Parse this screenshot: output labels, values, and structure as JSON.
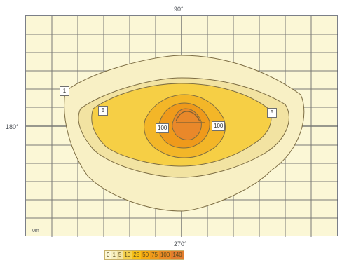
{
  "axes": {
    "top_label": "90°",
    "left_label": "180°",
    "bottom_label": "270°",
    "corner_note": "0m"
  },
  "contour_labels": [
    {
      "text": "1"
    },
    {
      "text": "5"
    },
    {
      "text": "5"
    },
    {
      "text": "100"
    },
    {
      "text": "100"
    }
  ],
  "legend": [
    {
      "label": "0",
      "color": "#fbf7d6"
    },
    {
      "label": "1",
      "color": "#f7f0bf"
    },
    {
      "label": "5",
      "color": "#f2e3a2"
    },
    {
      "label": "10",
      "color": "#f3d04d"
    },
    {
      "label": "25",
      "color": "#f6bf16"
    },
    {
      "label": "50",
      "color": "#f6aa12"
    },
    {
      "label": "75",
      "color": "#ef9a1b"
    },
    {
      "label": "100",
      "color": "#ea8a24"
    },
    {
      "label": "140",
      "color": "#e27d2e"
    }
  ],
  "colors": {
    "background": "#fbf7d6",
    "grid": "#4d4f55",
    "outline": "#7d6d43"
  }
}
